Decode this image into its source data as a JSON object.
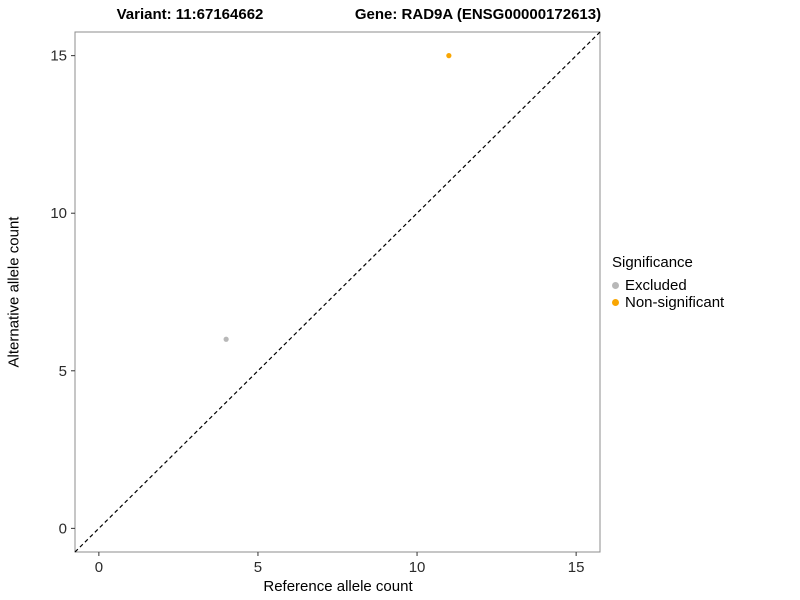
{
  "figure": {
    "title_left": "Variant: 11:67164662",
    "title_right": "Gene: RAD9A (ENSG00000172613)"
  },
  "chart_data": {
    "type": "scatter",
    "title": "Variant: 11:67164662   Gene: RAD9A (ENSG00000172613)",
    "xlabel": "Reference allele count",
    "ylabel": "Alternative allele count",
    "xlim": [
      -0.75,
      15.75
    ],
    "ylim": [
      -0.75,
      15.75
    ],
    "xticks": [
      0,
      5,
      10,
      15
    ],
    "yticks": [
      0,
      5,
      10,
      15
    ],
    "grid": false,
    "panel_border_color": "#8c8c8c",
    "reference_line": {
      "style": "dashed",
      "slope": 1,
      "intercept": 0,
      "color": "#000000"
    },
    "legend_title": "Significance",
    "legend_position": "right",
    "series": [
      {
        "name": "Excluded",
        "color": "#b8b8b8",
        "points": [
          {
            "x": 4,
            "y": 6
          }
        ]
      },
      {
        "name": "Non-significant",
        "color": "#f9a602",
        "points": [
          {
            "x": 11,
            "y": 15
          }
        ]
      }
    ]
  }
}
